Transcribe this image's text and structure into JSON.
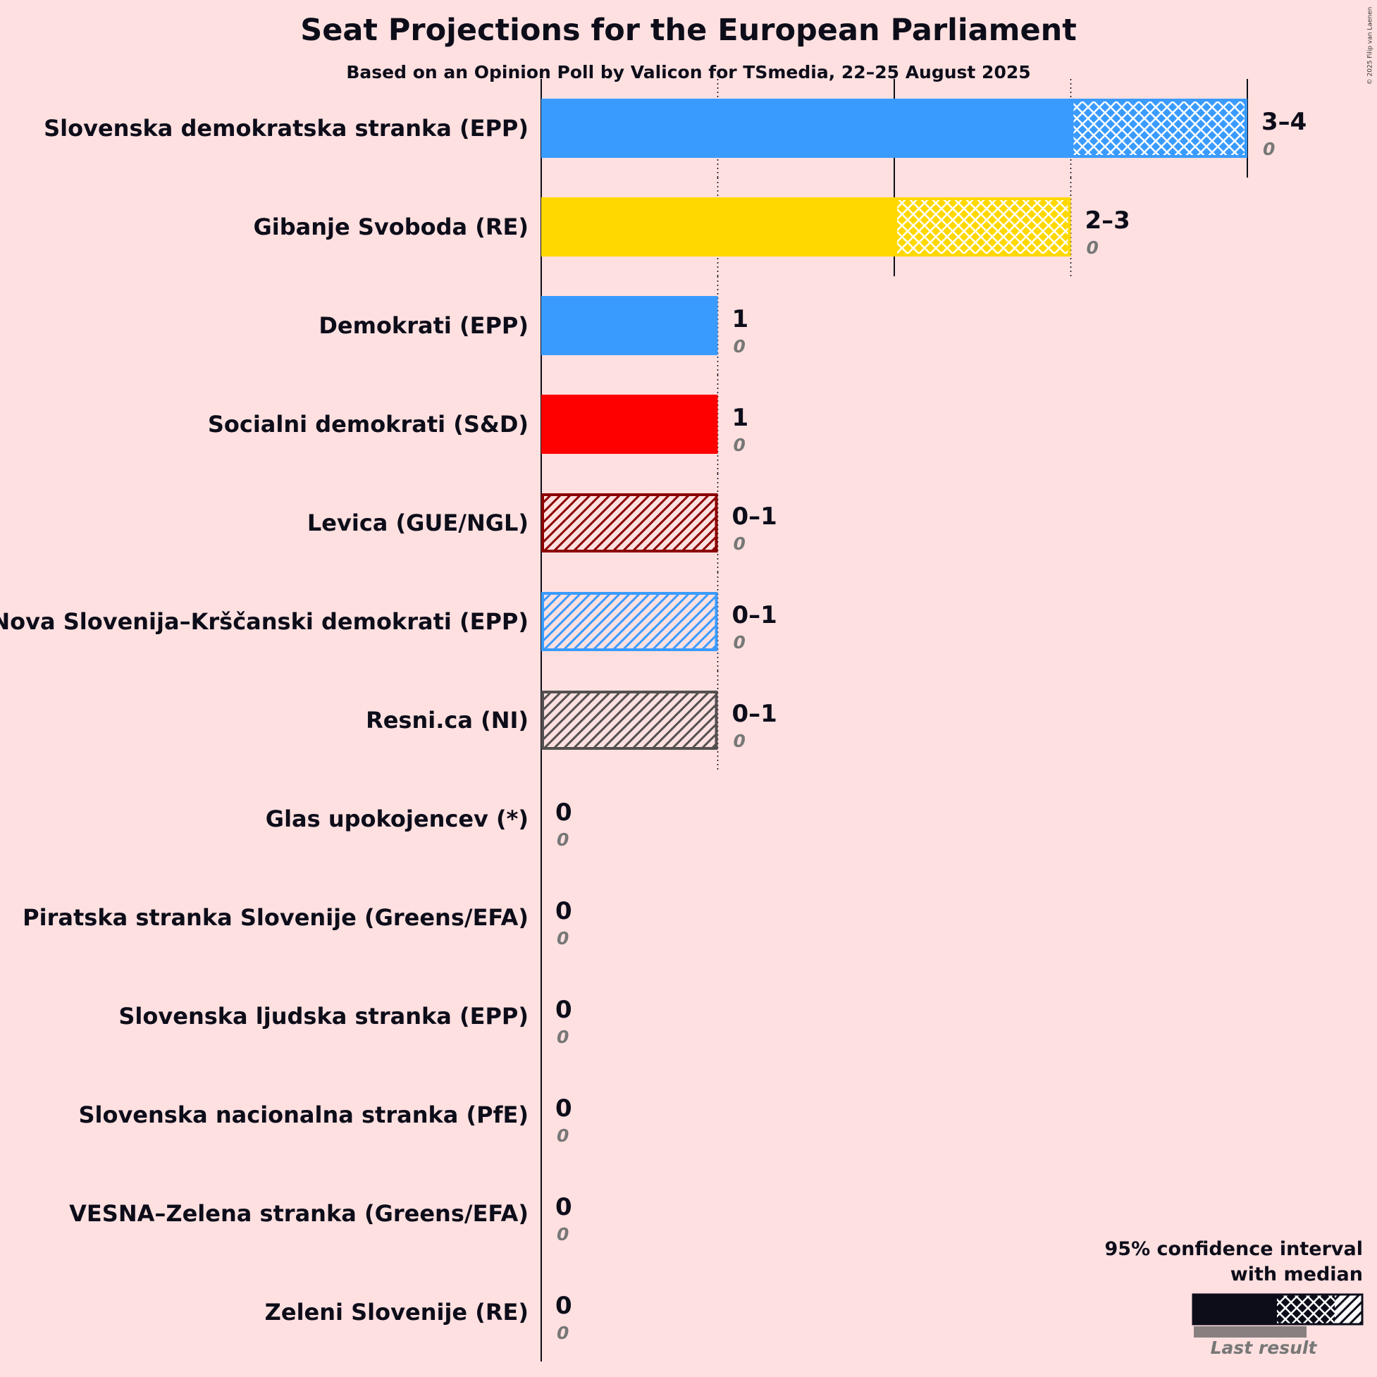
{
  "chart_data": {
    "type": "bar",
    "title": "Seat Projections for the European Parliament",
    "subtitle": "Based on an Opinion Poll by Valicon for TSmedia, 22–25 August 2025",
    "copyright": "© 2025 Filip van Laenen",
    "xlim": [
      0,
      4
    ],
    "grid": true,
    "legend": {
      "line1": "95% confidence interval",
      "line2": "with median",
      "last_result": "Last result",
      "placement": "bottom-right"
    },
    "parties": [
      {
        "name": "Slovenska demokratska stranka (EPP)",
        "low": 3,
        "median": 3,
        "high": 4,
        "range_label": "3–4",
        "last": 0,
        "last_label": "0",
        "color": "#3a9bff"
      },
      {
        "name": "Gibanje Svoboda (RE)",
        "low": 2,
        "median": 2,
        "high": 3,
        "range_label": "2–3",
        "last": 0,
        "last_label": "0",
        "color": "#ffd800"
      },
      {
        "name": "Demokrati (EPP)",
        "low": 1,
        "median": 1,
        "high": 1,
        "range_label": "1",
        "last": 0,
        "last_label": "0",
        "color": "#3a9bff"
      },
      {
        "name": "Socialni demokrati (S&D)",
        "low": 1,
        "median": 1,
        "high": 1,
        "range_label": "1",
        "last": 0,
        "last_label": "0",
        "color": "#ff0000"
      },
      {
        "name": "Levica (GUE/NGL)",
        "low": 0,
        "median": 0,
        "high": 1,
        "range_label": "0–1",
        "last": 0,
        "last_label": "0",
        "color": "#8b0000"
      },
      {
        "name": "Nova Slovenija–Krščanski demokrati (EPP)",
        "low": 0,
        "median": 0,
        "high": 1,
        "range_label": "0–1",
        "last": 0,
        "last_label": "0",
        "color": "#3a9bff"
      },
      {
        "name": "Resni.ca (NI)",
        "low": 0,
        "median": 0,
        "high": 1,
        "range_label": "0–1",
        "last": 0,
        "last_label": "0",
        "color": "#555050"
      },
      {
        "name": "Glas upokojencev (*)",
        "low": 0,
        "median": 0,
        "high": 0,
        "range_label": "0",
        "last": 0,
        "last_label": "0",
        "color": "#999999"
      },
      {
        "name": "Piratska stranka Slovenije (Greens/EFA)",
        "low": 0,
        "median": 0,
        "high": 0,
        "range_label": "0",
        "last": 0,
        "last_label": "0",
        "color": "#999999"
      },
      {
        "name": "Slovenska ljudska stranka (EPP)",
        "low": 0,
        "median": 0,
        "high": 0,
        "range_label": "0",
        "last": 0,
        "last_label": "0",
        "color": "#3a9bff"
      },
      {
        "name": "Slovenska nacionalna stranka (PfE)",
        "low": 0,
        "median": 0,
        "high": 0,
        "range_label": "0",
        "last": 0,
        "last_label": "0",
        "color": "#999999"
      },
      {
        "name": "VESNA–Zelena stranka (Greens/EFA)",
        "low": 0,
        "median": 0,
        "high": 0,
        "range_label": "0",
        "last": 0,
        "last_label": "0",
        "color": "#999999"
      },
      {
        "name": "Zeleni Slovenije (RE)",
        "low": 0,
        "median": 0,
        "high": 0,
        "range_label": "0",
        "last": 0,
        "last_label": "0",
        "color": "#999999"
      }
    ]
  }
}
